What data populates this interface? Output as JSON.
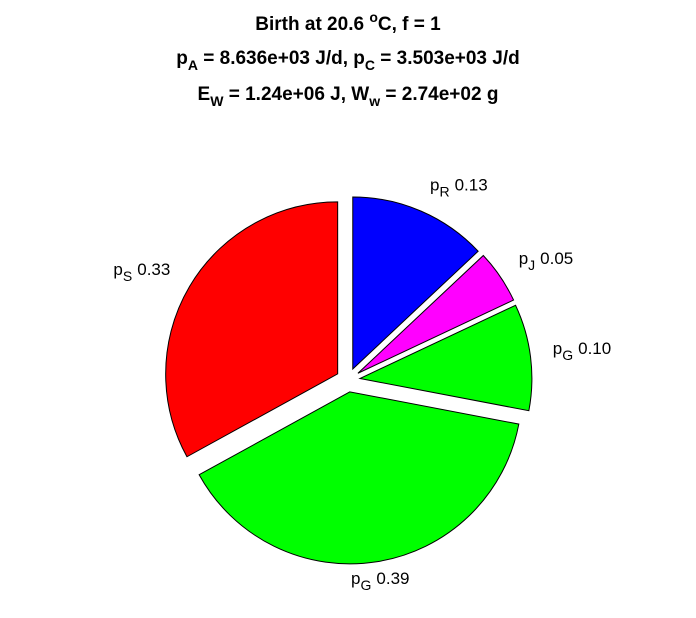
{
  "chart_data": {
    "type": "pie",
    "title": [
      [
        "Birth at 20.6 ",
        {
          "sup": "o"
        },
        "C, f = 1"
      ],
      [
        "p",
        {
          "sub": "A"
        },
        " = 8.636e+03 J/d, p",
        {
          "sub": "C"
        },
        " = 3.503e+03 J/d"
      ],
      [
        "E",
        {
          "sub": "W"
        },
        " = 1.24e+06 J, W",
        {
          "sub": "w"
        },
        " = 2.74e+02 g"
      ]
    ],
    "categories": [
      [
        "p",
        {
          "sub": "S"
        }
      ],
      [
        "p",
        {
          "sub": "G"
        }
      ],
      [
        "p",
        {
          "sub": "G"
        }
      ],
      [
        "p",
        {
          "sub": "J"
        }
      ],
      [
        "p",
        {
          "sub": "R"
        }
      ]
    ],
    "values": [
      0.33,
      0.39,
      0.1,
      0.05,
      0.13
    ],
    "value_labels": [
      "0.33",
      "0.39",
      "0.10",
      "0.05",
      "0.13"
    ],
    "colors": [
      "#ff0000",
      "#00ff00",
      "#00ff00",
      "#ff00ff",
      "#0000ff"
    ],
    "explode": true
  }
}
